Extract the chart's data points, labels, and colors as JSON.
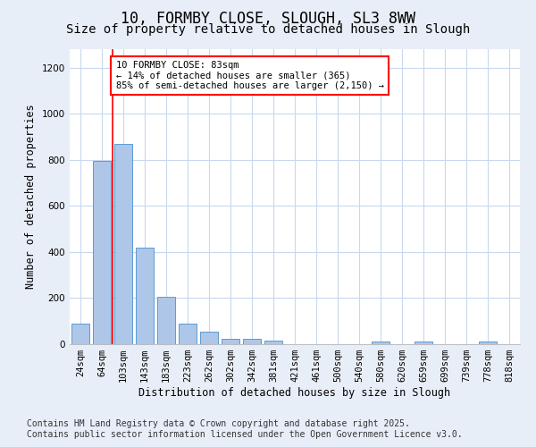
{
  "title_line1": "10, FORMBY CLOSE, SLOUGH, SL3 8WW",
  "title_line2": "Size of property relative to detached houses in Slough",
  "xlabel": "Distribution of detached houses by size in Slough",
  "ylabel": "Number of detached properties",
  "categories": [
    "24sqm",
    "64sqm",
    "103sqm",
    "143sqm",
    "183sqm",
    "223sqm",
    "262sqm",
    "302sqm",
    "342sqm",
    "381sqm",
    "421sqm",
    "461sqm",
    "500sqm",
    "540sqm",
    "580sqm",
    "620sqm",
    "659sqm",
    "699sqm",
    "739sqm",
    "778sqm",
    "818sqm"
  ],
  "values": [
    90,
    795,
    870,
    420,
    205,
    88,
    53,
    22,
    22,
    15,
    0,
    0,
    0,
    0,
    10,
    0,
    10,
    0,
    0,
    10,
    0
  ],
  "bar_color": "#aec6e8",
  "bar_edge_color": "#5b9bd5",
  "vline_x": 1.5,
  "vline_color": "red",
  "annotation_text": "10 FORMBY CLOSE: 83sqm\n← 14% of detached houses are smaller (365)\n85% of semi-detached houses are larger (2,150) →",
  "annotation_box_color": "white",
  "annotation_box_edge": "red",
  "ylim": [
    0,
    1280
  ],
  "yticks": [
    0,
    200,
    400,
    600,
    800,
    1000,
    1200
  ],
  "figure_bg_color": "#e8eef7",
  "plot_bg_color": "#ffffff",
  "footer_line1": "Contains HM Land Registry data © Crown copyright and database right 2025.",
  "footer_line2": "Contains public sector information licensed under the Open Government Licence v3.0.",
  "title_fontsize": 12,
  "subtitle_fontsize": 10,
  "tick_fontsize": 7.5,
  "label_fontsize": 8.5,
  "footer_fontsize": 7,
  "ann_fontsize": 7.5
}
